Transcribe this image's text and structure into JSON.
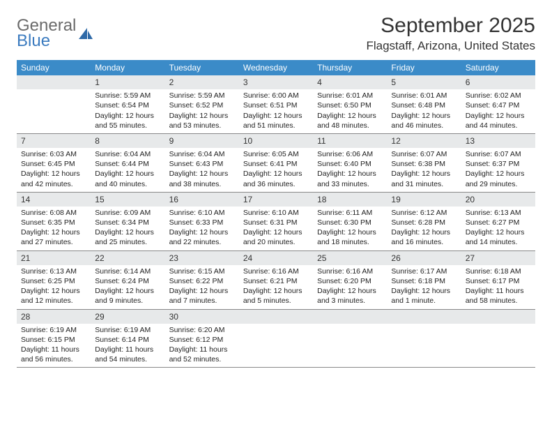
{
  "logo": {
    "brand_top": "General",
    "brand_bottom": "Blue"
  },
  "header": {
    "month_title": "September 2025",
    "location": "Flagstaff, Arizona, United States"
  },
  "weekdays": [
    "Sunday",
    "Monday",
    "Tuesday",
    "Wednesday",
    "Thursday",
    "Friday",
    "Saturday"
  ],
  "colors": {
    "header_bar": "#3b8bc8",
    "daynum_bg": "#e7e9ea",
    "text": "#222222",
    "logo_gray": "#6a6a6a",
    "logo_blue": "#3b7bbf"
  },
  "weeks": [
    [
      {
        "n": "",
        "sunrise": "",
        "sunset": "",
        "daylight": ""
      },
      {
        "n": "1",
        "sunrise": "Sunrise: 5:59 AM",
        "sunset": "Sunset: 6:54 PM",
        "daylight": "Daylight: 12 hours and 55 minutes."
      },
      {
        "n": "2",
        "sunrise": "Sunrise: 5:59 AM",
        "sunset": "Sunset: 6:52 PM",
        "daylight": "Daylight: 12 hours and 53 minutes."
      },
      {
        "n": "3",
        "sunrise": "Sunrise: 6:00 AM",
        "sunset": "Sunset: 6:51 PM",
        "daylight": "Daylight: 12 hours and 51 minutes."
      },
      {
        "n": "4",
        "sunrise": "Sunrise: 6:01 AM",
        "sunset": "Sunset: 6:50 PM",
        "daylight": "Daylight: 12 hours and 48 minutes."
      },
      {
        "n": "5",
        "sunrise": "Sunrise: 6:01 AM",
        "sunset": "Sunset: 6:48 PM",
        "daylight": "Daylight: 12 hours and 46 minutes."
      },
      {
        "n": "6",
        "sunrise": "Sunrise: 6:02 AM",
        "sunset": "Sunset: 6:47 PM",
        "daylight": "Daylight: 12 hours and 44 minutes."
      }
    ],
    [
      {
        "n": "7",
        "sunrise": "Sunrise: 6:03 AM",
        "sunset": "Sunset: 6:45 PM",
        "daylight": "Daylight: 12 hours and 42 minutes."
      },
      {
        "n": "8",
        "sunrise": "Sunrise: 6:04 AM",
        "sunset": "Sunset: 6:44 PM",
        "daylight": "Daylight: 12 hours and 40 minutes."
      },
      {
        "n": "9",
        "sunrise": "Sunrise: 6:04 AM",
        "sunset": "Sunset: 6:43 PM",
        "daylight": "Daylight: 12 hours and 38 minutes."
      },
      {
        "n": "10",
        "sunrise": "Sunrise: 6:05 AM",
        "sunset": "Sunset: 6:41 PM",
        "daylight": "Daylight: 12 hours and 36 minutes."
      },
      {
        "n": "11",
        "sunrise": "Sunrise: 6:06 AM",
        "sunset": "Sunset: 6:40 PM",
        "daylight": "Daylight: 12 hours and 33 minutes."
      },
      {
        "n": "12",
        "sunrise": "Sunrise: 6:07 AM",
        "sunset": "Sunset: 6:38 PM",
        "daylight": "Daylight: 12 hours and 31 minutes."
      },
      {
        "n": "13",
        "sunrise": "Sunrise: 6:07 AM",
        "sunset": "Sunset: 6:37 PM",
        "daylight": "Daylight: 12 hours and 29 minutes."
      }
    ],
    [
      {
        "n": "14",
        "sunrise": "Sunrise: 6:08 AM",
        "sunset": "Sunset: 6:35 PM",
        "daylight": "Daylight: 12 hours and 27 minutes."
      },
      {
        "n": "15",
        "sunrise": "Sunrise: 6:09 AM",
        "sunset": "Sunset: 6:34 PM",
        "daylight": "Daylight: 12 hours and 25 minutes."
      },
      {
        "n": "16",
        "sunrise": "Sunrise: 6:10 AM",
        "sunset": "Sunset: 6:33 PM",
        "daylight": "Daylight: 12 hours and 22 minutes."
      },
      {
        "n": "17",
        "sunrise": "Sunrise: 6:10 AM",
        "sunset": "Sunset: 6:31 PM",
        "daylight": "Daylight: 12 hours and 20 minutes."
      },
      {
        "n": "18",
        "sunrise": "Sunrise: 6:11 AM",
        "sunset": "Sunset: 6:30 PM",
        "daylight": "Daylight: 12 hours and 18 minutes."
      },
      {
        "n": "19",
        "sunrise": "Sunrise: 6:12 AM",
        "sunset": "Sunset: 6:28 PM",
        "daylight": "Daylight: 12 hours and 16 minutes."
      },
      {
        "n": "20",
        "sunrise": "Sunrise: 6:13 AM",
        "sunset": "Sunset: 6:27 PM",
        "daylight": "Daylight: 12 hours and 14 minutes."
      }
    ],
    [
      {
        "n": "21",
        "sunrise": "Sunrise: 6:13 AM",
        "sunset": "Sunset: 6:25 PM",
        "daylight": "Daylight: 12 hours and 12 minutes."
      },
      {
        "n": "22",
        "sunrise": "Sunrise: 6:14 AM",
        "sunset": "Sunset: 6:24 PM",
        "daylight": "Daylight: 12 hours and 9 minutes."
      },
      {
        "n": "23",
        "sunrise": "Sunrise: 6:15 AM",
        "sunset": "Sunset: 6:22 PM",
        "daylight": "Daylight: 12 hours and 7 minutes."
      },
      {
        "n": "24",
        "sunrise": "Sunrise: 6:16 AM",
        "sunset": "Sunset: 6:21 PM",
        "daylight": "Daylight: 12 hours and 5 minutes."
      },
      {
        "n": "25",
        "sunrise": "Sunrise: 6:16 AM",
        "sunset": "Sunset: 6:20 PM",
        "daylight": "Daylight: 12 hours and 3 minutes."
      },
      {
        "n": "26",
        "sunrise": "Sunrise: 6:17 AM",
        "sunset": "Sunset: 6:18 PM",
        "daylight": "Daylight: 12 hours and 1 minute."
      },
      {
        "n": "27",
        "sunrise": "Sunrise: 6:18 AM",
        "sunset": "Sunset: 6:17 PM",
        "daylight": "Daylight: 11 hours and 58 minutes."
      }
    ],
    [
      {
        "n": "28",
        "sunrise": "Sunrise: 6:19 AM",
        "sunset": "Sunset: 6:15 PM",
        "daylight": "Daylight: 11 hours and 56 minutes."
      },
      {
        "n": "29",
        "sunrise": "Sunrise: 6:19 AM",
        "sunset": "Sunset: 6:14 PM",
        "daylight": "Daylight: 11 hours and 54 minutes."
      },
      {
        "n": "30",
        "sunrise": "Sunrise: 6:20 AM",
        "sunset": "Sunset: 6:12 PM",
        "daylight": "Daylight: 11 hours and 52 minutes."
      },
      {
        "n": "",
        "sunrise": "",
        "sunset": "",
        "daylight": ""
      },
      {
        "n": "",
        "sunrise": "",
        "sunset": "",
        "daylight": ""
      },
      {
        "n": "",
        "sunrise": "",
        "sunset": "",
        "daylight": ""
      },
      {
        "n": "",
        "sunrise": "",
        "sunset": "",
        "daylight": ""
      }
    ]
  ]
}
